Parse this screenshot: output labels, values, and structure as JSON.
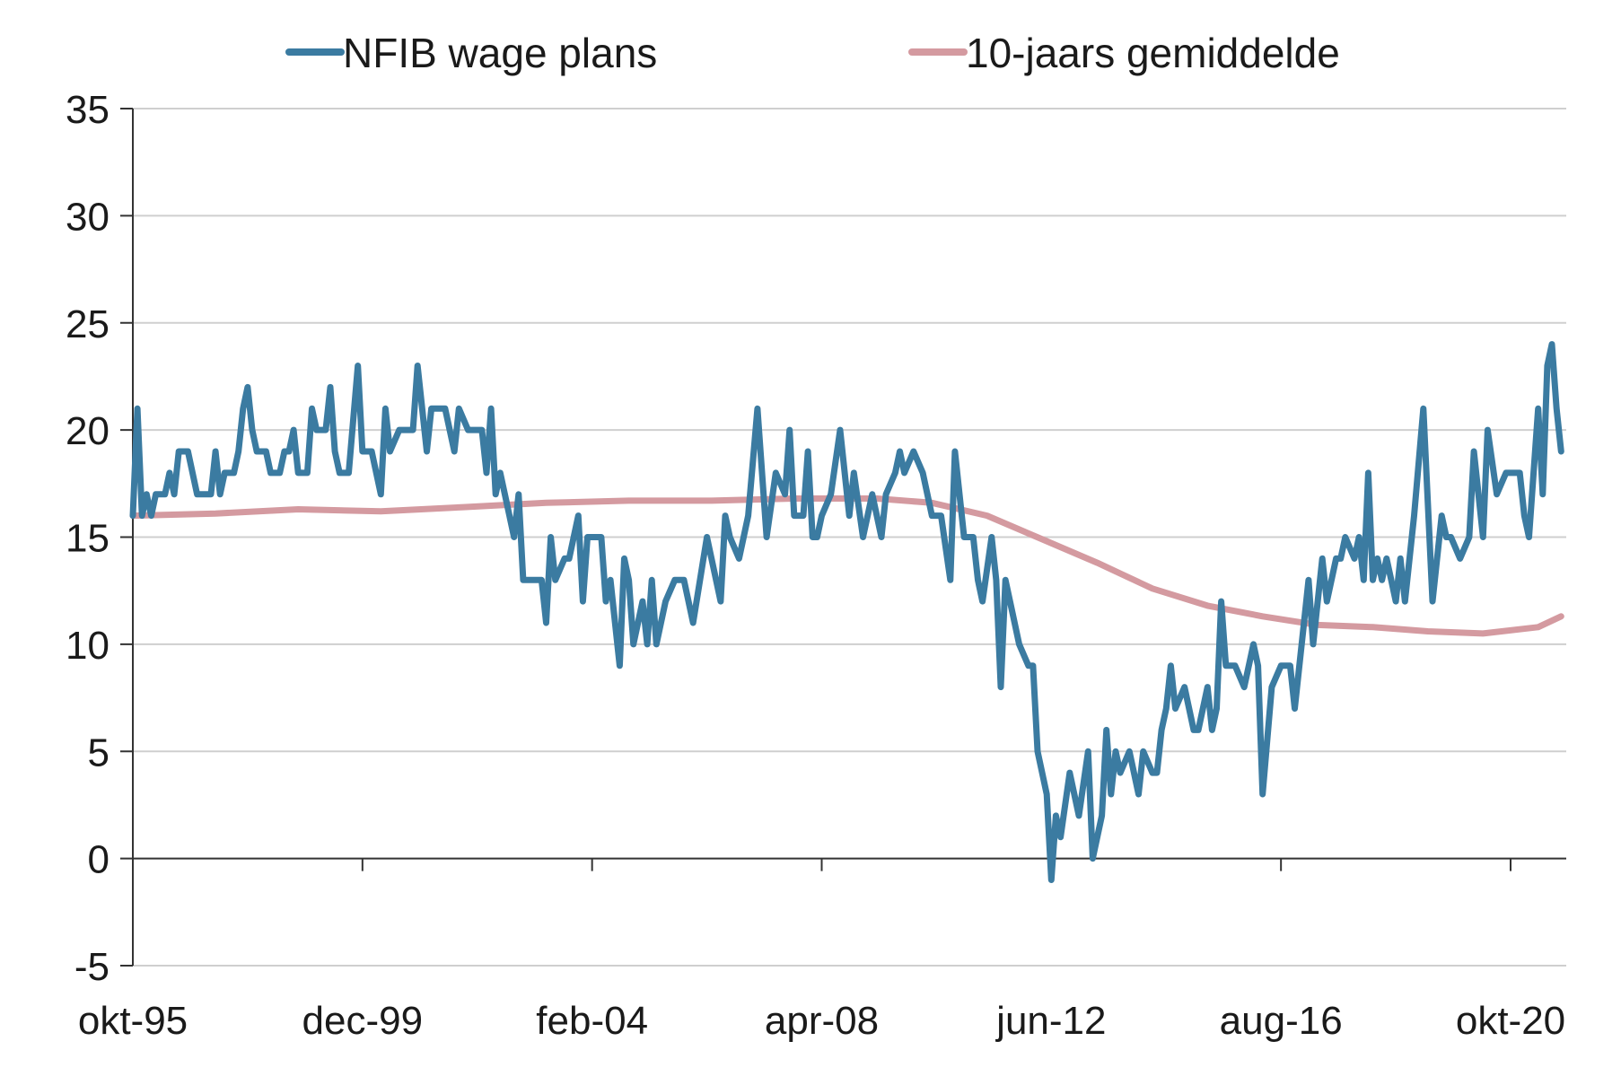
{
  "chart_data": {
    "type": "line",
    "title": "",
    "xlabel": "",
    "ylabel": "",
    "ylim": [
      -5,
      35
    ],
    "yticks": [
      -5,
      0,
      5,
      10,
      15,
      20,
      25,
      30,
      35
    ],
    "x_tick_labels": [
      "okt-95",
      "dec-99",
      "feb-04",
      "apr-08",
      "jun-12",
      "aug-16",
      "okt-20"
    ],
    "x_range": [
      "1995-10",
      "2021-09"
    ],
    "grid": "horizontal",
    "legend": "top",
    "series": [
      {
        "name": "NFIB wage plans",
        "color": "#3b7ba1",
        "points": [
          [
            "1995-10",
            16
          ],
          [
            "1995-11",
            21
          ],
          [
            "1995-12",
            16
          ],
          [
            "1996-01",
            17
          ],
          [
            "1996-02",
            16
          ],
          [
            "1996-03",
            17
          ],
          [
            "1996-05",
            17
          ],
          [
            "1996-06",
            18
          ],
          [
            "1996-07",
            17
          ],
          [
            "1996-08",
            19
          ],
          [
            "1996-10",
            19
          ],
          [
            "1996-12",
            17
          ],
          [
            "1997-03",
            17
          ],
          [
            "1997-04",
            19
          ],
          [
            "1997-05",
            17
          ],
          [
            "1997-06",
            18
          ],
          [
            "1997-08",
            18
          ],
          [
            "1997-09",
            19
          ],
          [
            "1997-10",
            21
          ],
          [
            "1997-11",
            22
          ],
          [
            "1997-12",
            20
          ],
          [
            "1998-01",
            19
          ],
          [
            "1998-03",
            19
          ],
          [
            "1998-04",
            18
          ],
          [
            "1998-06",
            18
          ],
          [
            "1998-07",
            19
          ],
          [
            "1998-08",
            19
          ],
          [
            "1998-09",
            20
          ],
          [
            "1998-10",
            18
          ],
          [
            "1998-12",
            18
          ],
          [
            "1999-01",
            21
          ],
          [
            "1999-02",
            20
          ],
          [
            "1999-04",
            20
          ],
          [
            "1999-05",
            22
          ],
          [
            "1999-06",
            19
          ],
          [
            "1999-07",
            18
          ],
          [
            "1999-09",
            18
          ],
          [
            "1999-11",
            23
          ],
          [
            "1999-12",
            19
          ],
          [
            "2000-02",
            19
          ],
          [
            "2000-04",
            17
          ],
          [
            "2000-05",
            21
          ],
          [
            "2000-06",
            19
          ],
          [
            "2000-08",
            20
          ],
          [
            "2000-11",
            20
          ],
          [
            "2000-12",
            23
          ],
          [
            "2001-02",
            19
          ],
          [
            "2001-03",
            21
          ],
          [
            "2001-06",
            21
          ],
          [
            "2001-08",
            19
          ],
          [
            "2001-09",
            21
          ],
          [
            "2001-11",
            20
          ],
          [
            "2002-02",
            20
          ],
          [
            "2002-03",
            18
          ],
          [
            "2002-04",
            21
          ],
          [
            "2002-05",
            17
          ],
          [
            "2002-06",
            18
          ],
          [
            "2002-08",
            16
          ],
          [
            "2002-09",
            15
          ],
          [
            "2002-10",
            17
          ],
          [
            "2002-11",
            13
          ],
          [
            "2003-03",
            13
          ],
          [
            "2003-04",
            11
          ],
          [
            "2003-05",
            15
          ],
          [
            "2003-06",
            13
          ],
          [
            "2003-08",
            14
          ],
          [
            "2003-09",
            14
          ],
          [
            "2003-11",
            16
          ],
          [
            "2003-12",
            12
          ],
          [
            "2004-01",
            15
          ],
          [
            "2004-04",
            15
          ],
          [
            "2004-05",
            12
          ],
          [
            "2004-06",
            13
          ],
          [
            "2004-08",
            9
          ],
          [
            "2004-09",
            14
          ],
          [
            "2004-10",
            13
          ],
          [
            "2004-11",
            10
          ],
          [
            "2005-01",
            12
          ],
          [
            "2005-02",
            10
          ],
          [
            "2005-03",
            13
          ],
          [
            "2005-04",
            10
          ],
          [
            "2005-06",
            12
          ],
          [
            "2005-08",
            13
          ],
          [
            "2005-10",
            13
          ],
          [
            "2005-12",
            11
          ],
          [
            "2006-03",
            15
          ],
          [
            "2006-04",
            14
          ],
          [
            "2006-06",
            12
          ],
          [
            "2006-07",
            16
          ],
          [
            "2006-08",
            15
          ],
          [
            "2006-10",
            14
          ],
          [
            "2006-12",
            16
          ],
          [
            "2007-02",
            21
          ],
          [
            "2007-04",
            15
          ],
          [
            "2007-06",
            18
          ],
          [
            "2007-08",
            17
          ],
          [
            "2007-09",
            20
          ],
          [
            "2007-10",
            16
          ],
          [
            "2007-12",
            16
          ],
          [
            "2008-01",
            19
          ],
          [
            "2008-02",
            15
          ],
          [
            "2008-03",
            15
          ],
          [
            "2008-04",
            16
          ],
          [
            "2008-06",
            17
          ],
          [
            "2008-08",
            20
          ],
          [
            "2008-10",
            16
          ],
          [
            "2008-11",
            18
          ],
          [
            "2009-01",
            15
          ],
          [
            "2009-03",
            17
          ],
          [
            "2009-04",
            16
          ],
          [
            "2009-05",
            15
          ],
          [
            "2009-06",
            17
          ],
          [
            "2009-08",
            18
          ],
          [
            "2009-09",
            19
          ],
          [
            "2009-10",
            18
          ],
          [
            "2009-12",
            19
          ],
          [
            "2010-02",
            18
          ],
          [
            "2010-04",
            16
          ],
          [
            "2010-06",
            16
          ],
          [
            "2010-08",
            13
          ],
          [
            "2010-09",
            19
          ],
          [
            "2010-11",
            15
          ],
          [
            "2011-01",
            15
          ],
          [
            "2011-02",
            13
          ],
          [
            "2011-03",
            12
          ],
          [
            "2011-05",
            15
          ],
          [
            "2011-06",
            13
          ],
          [
            "2011-07",
            8
          ],
          [
            "2011-08",
            13
          ],
          [
            "2011-09",
            12
          ],
          [
            "2011-11",
            10
          ],
          [
            "2012-01",
            9
          ],
          [
            "2012-02",
            9
          ],
          [
            "2012-03",
            5
          ],
          [
            "2012-05",
            3
          ],
          [
            "2012-06",
            -1
          ],
          [
            "2012-07",
            2
          ],
          [
            "2012-08",
            1
          ],
          [
            "2012-10",
            4
          ],
          [
            "2012-12",
            2
          ],
          [
            "2013-02",
            5
          ],
          [
            "2013-03",
            0
          ],
          [
            "2013-05",
            2
          ],
          [
            "2013-06",
            6
          ],
          [
            "2013-07",
            3
          ],
          [
            "2013-08",
            5
          ],
          [
            "2013-09",
            4
          ],
          [
            "2013-11",
            5
          ],
          [
            "2014-01",
            3
          ],
          [
            "2014-02",
            5
          ],
          [
            "2014-04",
            4
          ],
          [
            "2014-05",
            4
          ],
          [
            "2014-06",
            6
          ],
          [
            "2014-07",
            7
          ],
          [
            "2014-08",
            9
          ],
          [
            "2014-09",
            7
          ],
          [
            "2014-11",
            8
          ],
          [
            "2015-01",
            6
          ],
          [
            "2015-02",
            6
          ],
          [
            "2015-04",
            8
          ],
          [
            "2015-05",
            6
          ],
          [
            "2015-06",
            7
          ],
          [
            "2015-07",
            12
          ],
          [
            "2015-08",
            9
          ],
          [
            "2015-10",
            9
          ],
          [
            "2015-12",
            8
          ],
          [
            "2016-02",
            10
          ],
          [
            "2016-03",
            9
          ],
          [
            "2016-04",
            3
          ],
          [
            "2016-06",
            8
          ],
          [
            "2016-08",
            9
          ],
          [
            "2016-10",
            9
          ],
          [
            "2016-11",
            7
          ],
          [
            "2017-01",
            11
          ],
          [
            "2017-02",
            13
          ],
          [
            "2017-03",
            10
          ],
          [
            "2017-05",
            14
          ],
          [
            "2017-06",
            12
          ],
          [
            "2017-08",
            14
          ],
          [
            "2017-09",
            14
          ],
          [
            "2017-10",
            15
          ],
          [
            "2017-12",
            14
          ],
          [
            "2018-01",
            15
          ],
          [
            "2018-02",
            13
          ],
          [
            "2018-03",
            18
          ],
          [
            "2018-04",
            13
          ],
          [
            "2018-05",
            14
          ],
          [
            "2018-06",
            13
          ],
          [
            "2018-07",
            14
          ],
          [
            "2018-08",
            13
          ],
          [
            "2018-09",
            12
          ],
          [
            "2018-10",
            14
          ],
          [
            "2018-11",
            12
          ],
          [
            "2019-01",
            16
          ],
          [
            "2019-03",
            21
          ],
          [
            "2019-05",
            12
          ],
          [
            "2019-07",
            16
          ],
          [
            "2019-08",
            15
          ],
          [
            "2019-09",
            15
          ],
          [
            "2019-11",
            14
          ],
          [
            "2020-01",
            15
          ],
          [
            "2020-02",
            19
          ],
          [
            "2020-04",
            15
          ],
          [
            "2020-05",
            20
          ],
          [
            "2020-07",
            17
          ],
          [
            "2020-09",
            18
          ],
          [
            "2020-10",
            18
          ],
          [
            "2020-12",
            18
          ],
          [
            "2021-01",
            16
          ],
          [
            "2021-02",
            15
          ],
          [
            "2021-04",
            21
          ],
          [
            "2021-05",
            17
          ],
          [
            "2021-06",
            23
          ],
          [
            "2021-07",
            24
          ],
          [
            "2021-08",
            21
          ],
          [
            "2021-09",
            19
          ]
        ]
      },
      {
        "name": "10-jaars gemiddelde",
        "color": "#d49aa0",
        "points": [
          [
            "1995-10",
            16.0
          ],
          [
            "1997-04",
            16.1
          ],
          [
            "1998-10",
            16.3
          ],
          [
            "2000-04",
            16.2
          ],
          [
            "2001-10",
            16.4
          ],
          [
            "2003-04",
            16.6
          ],
          [
            "2004-10",
            16.7
          ],
          [
            "2006-04",
            16.7
          ],
          [
            "2007-10",
            16.8
          ],
          [
            "2009-04",
            16.8
          ],
          [
            "2010-04",
            16.6
          ],
          [
            "2011-04",
            16.0
          ],
          [
            "2012-04",
            14.9
          ],
          [
            "2013-04",
            13.8
          ],
          [
            "2014-04",
            12.6
          ],
          [
            "2015-04",
            11.8
          ],
          [
            "2016-04",
            11.3
          ],
          [
            "2017-04",
            10.9
          ],
          [
            "2018-04",
            10.8
          ],
          [
            "2019-04",
            10.6
          ],
          [
            "2020-04",
            10.5
          ],
          [
            "2021-04",
            10.8
          ],
          [
            "2021-09",
            11.3
          ]
        ]
      }
    ]
  }
}
